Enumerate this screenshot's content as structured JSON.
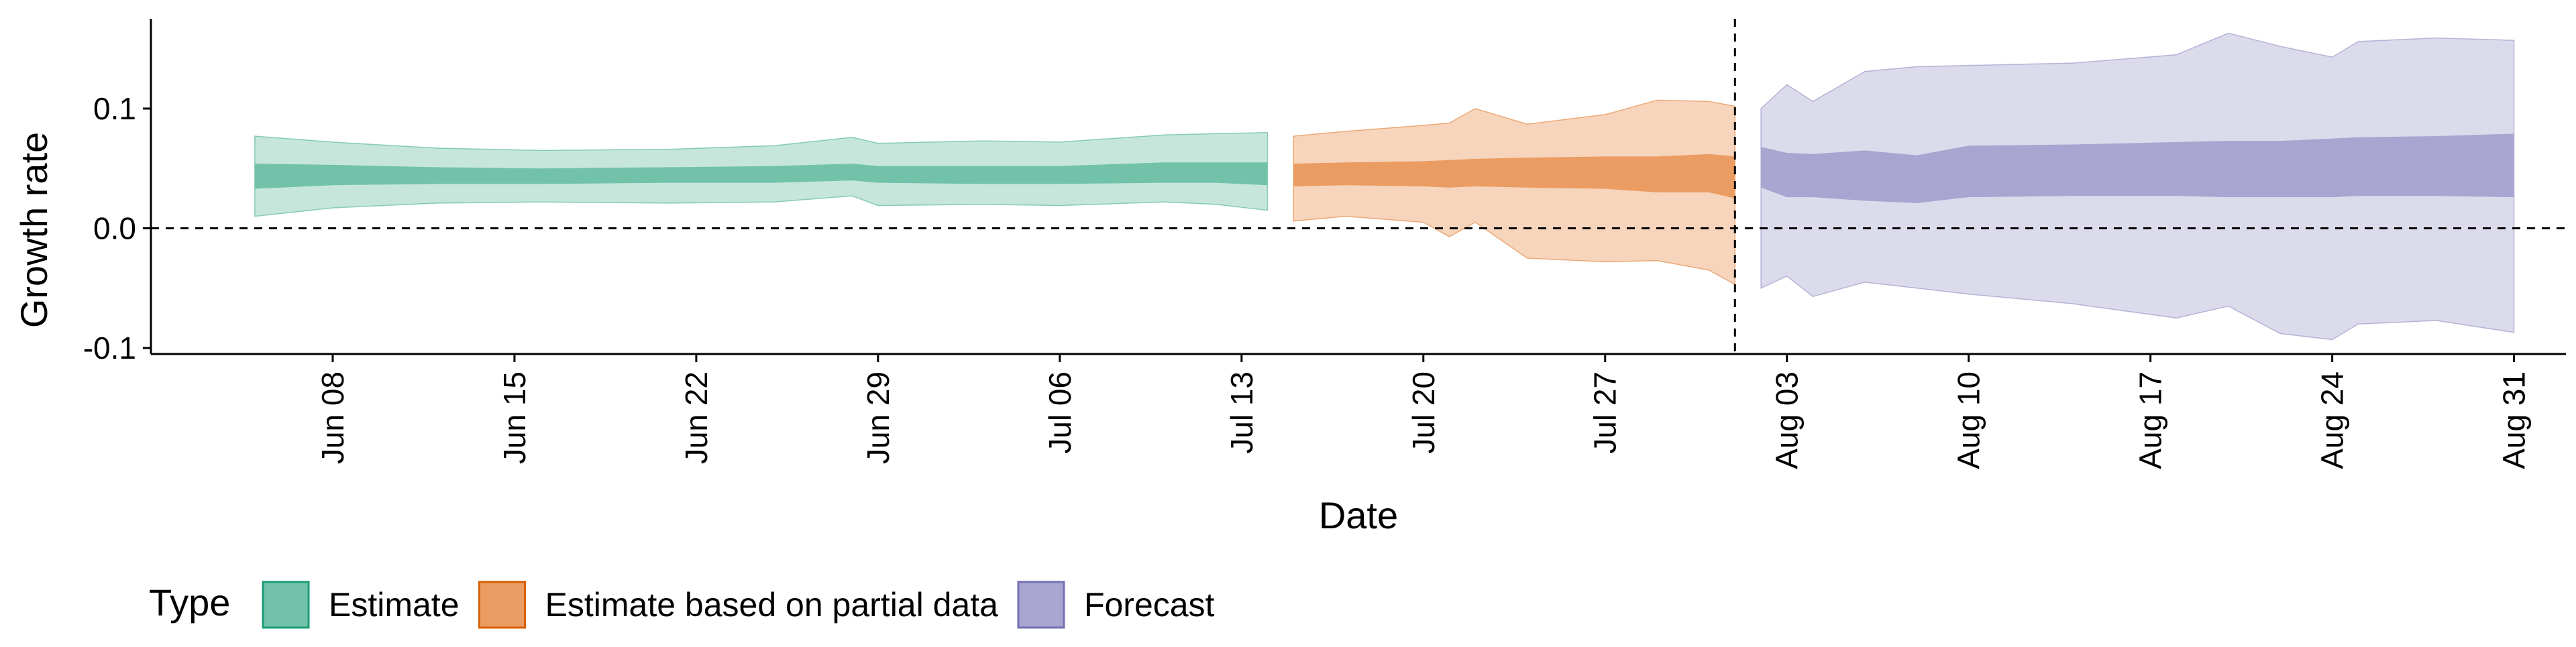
{
  "chart_data": {
    "type": "area",
    "xlabel": "Date",
    "ylabel": "Growth rate",
    "x_axis": {
      "type": "date",
      "range": [
        "2020-06-01",
        "2020-09-02"
      ],
      "ticks": [
        {
          "date": "2020-06-08",
          "label": "Jun 08"
        },
        {
          "date": "2020-06-15",
          "label": "Jun 15"
        },
        {
          "date": "2020-06-22",
          "label": "Jun 22"
        },
        {
          "date": "2020-06-29",
          "label": "Jun 29"
        },
        {
          "date": "2020-07-06",
          "label": "Jul 06"
        },
        {
          "date": "2020-07-13",
          "label": "Jul 13"
        },
        {
          "date": "2020-07-20",
          "label": "Jul 20"
        },
        {
          "date": "2020-07-27",
          "label": "Jul 27"
        },
        {
          "date": "2020-08-03",
          "label": "Aug 03"
        },
        {
          "date": "2020-08-10",
          "label": "Aug 10"
        },
        {
          "date": "2020-08-17",
          "label": "Aug 17"
        },
        {
          "date": "2020-08-24",
          "label": "Aug 24"
        },
        {
          "date": "2020-08-31",
          "label": "Aug 31"
        }
      ]
    },
    "y_axis": {
      "range": [
        -0.105,
        0.175
      ],
      "ticks": [
        {
          "value": 0.1,
          "label": "0.1"
        },
        {
          "value": 0.0,
          "label": "0.0"
        },
        {
          "value": -0.1,
          "label": "-0.1"
        }
      ]
    },
    "reference_lines": {
      "horizontal_y": 0.0,
      "vertical_date": "2020-08-01",
      "style": "dashed"
    },
    "grid": false,
    "legend": {
      "title": "Type",
      "position": "bottom-left",
      "entries": [
        {
          "label": "Estimate",
          "fill": "#72C2A9",
          "border": "#1B9E77"
        },
        {
          "label": "Estimate based on partial data",
          "fill": "#EA9C62",
          "border": "#D95F02"
        },
        {
          "label": "Forecast",
          "fill": "#A8A5D0",
          "border": "#7570B3"
        }
      ]
    },
    "series": [
      {
        "name": "Estimate",
        "color": "#1B9E77",
        "outer_fill": "#C6E6DC",
        "inner_fill": "#72C2A9",
        "points": [
          {
            "date": "2020-06-05",
            "lo90": 0.01,
            "hi90": 0.077,
            "lo50": 0.033,
            "hi50": 0.054
          },
          {
            "date": "2020-06-08",
            "lo90": 0.017,
            "hi90": 0.072,
            "lo50": 0.036,
            "hi50": 0.053
          },
          {
            "date": "2020-06-12",
            "lo90": 0.021,
            "hi90": 0.067,
            "lo50": 0.037,
            "hi50": 0.051
          },
          {
            "date": "2020-06-16",
            "lo90": 0.022,
            "hi90": 0.065,
            "lo50": 0.037,
            "hi50": 0.05
          },
          {
            "date": "2020-06-21",
            "lo90": 0.021,
            "hi90": 0.066,
            "lo50": 0.038,
            "hi50": 0.051
          },
          {
            "date": "2020-06-25",
            "lo90": 0.022,
            "hi90": 0.069,
            "lo50": 0.038,
            "hi50": 0.052
          },
          {
            "date": "2020-06-28",
            "lo90": 0.027,
            "hi90": 0.076,
            "lo50": 0.04,
            "hi50": 0.054
          },
          {
            "date": "2020-06-29",
            "lo90": 0.019,
            "hi90": 0.071,
            "lo50": 0.038,
            "hi50": 0.052
          },
          {
            "date": "2020-07-03",
            "lo90": 0.02,
            "hi90": 0.073,
            "lo50": 0.037,
            "hi50": 0.052
          },
          {
            "date": "2020-07-06",
            "lo90": 0.019,
            "hi90": 0.072,
            "lo50": 0.037,
            "hi50": 0.052
          },
          {
            "date": "2020-07-10",
            "lo90": 0.022,
            "hi90": 0.078,
            "lo50": 0.038,
            "hi50": 0.055
          },
          {
            "date": "2020-07-12",
            "lo90": 0.02,
            "hi90": 0.079,
            "lo50": 0.038,
            "hi50": 0.055
          },
          {
            "date": "2020-07-14",
            "lo90": 0.015,
            "hi90": 0.08,
            "lo50": 0.036,
            "hi50": 0.055
          }
        ]
      },
      {
        "name": "Estimate based on partial data",
        "color": "#D95F02",
        "outer_fill": "#F7D4BC",
        "inner_fill": "#EA9C62",
        "points": [
          {
            "date": "2020-07-15",
            "lo90": 0.006,
            "hi90": 0.077,
            "lo50": 0.035,
            "hi50": 0.054
          },
          {
            "date": "2020-07-17",
            "lo90": 0.01,
            "hi90": 0.081,
            "lo50": 0.036,
            "hi50": 0.055
          },
          {
            "date": "2020-07-20",
            "lo90": 0.005,
            "hi90": 0.086,
            "lo50": 0.035,
            "hi50": 0.056
          },
          {
            "date": "2020-07-21",
            "lo90": -0.007,
            "hi90": 0.088,
            "lo50": 0.034,
            "hi50": 0.057
          },
          {
            "date": "2020-07-22",
            "lo90": 0.005,
            "hi90": 0.1,
            "lo50": 0.035,
            "hi50": 0.058
          },
          {
            "date": "2020-07-24",
            "lo90": -0.025,
            "hi90": 0.087,
            "lo50": 0.034,
            "hi50": 0.059
          },
          {
            "date": "2020-07-27",
            "lo90": -0.028,
            "hi90": 0.095,
            "lo50": 0.033,
            "hi50": 0.06
          },
          {
            "date": "2020-07-29",
            "lo90": -0.027,
            "hi90": 0.107,
            "lo50": 0.03,
            "hi50": 0.06
          },
          {
            "date": "2020-07-31",
            "lo90": -0.035,
            "hi90": 0.106,
            "lo50": 0.03,
            "hi50": 0.062
          },
          {
            "date": "2020-08-01",
            "lo90": -0.047,
            "hi90": 0.102,
            "lo50": 0.025,
            "hi50": 0.06
          }
        ]
      },
      {
        "name": "Forecast",
        "color": "#7570B3",
        "outer_fill": "#DCDBEC",
        "inner_fill": "#A8A5D0",
        "points": [
          {
            "date": "2020-08-02",
            "lo90": -0.05,
            "hi90": 0.1,
            "lo50": 0.034,
            "hi50": 0.068
          },
          {
            "date": "2020-08-03",
            "lo90": -0.04,
            "hi90": 0.12,
            "lo50": 0.026,
            "hi50": 0.063
          },
          {
            "date": "2020-08-04",
            "lo90": -0.057,
            "hi90": 0.106,
            "lo50": 0.026,
            "hi50": 0.062
          },
          {
            "date": "2020-08-06",
            "lo90": -0.045,
            "hi90": 0.131,
            "lo50": 0.023,
            "hi50": 0.065
          },
          {
            "date": "2020-08-08",
            "lo90": -0.05,
            "hi90": 0.135,
            "lo50": 0.021,
            "hi50": 0.061
          },
          {
            "date": "2020-08-10",
            "lo90": -0.055,
            "hi90": 0.136,
            "lo50": 0.026,
            "hi50": 0.069
          },
          {
            "date": "2020-08-14",
            "lo90": -0.063,
            "hi90": 0.138,
            "lo50": 0.027,
            "hi50": 0.07
          },
          {
            "date": "2020-08-18",
            "lo90": -0.075,
            "hi90": 0.145,
            "lo50": 0.027,
            "hi50": 0.072
          },
          {
            "date": "2020-08-20",
            "lo90": -0.065,
            "hi90": 0.163,
            "lo50": 0.026,
            "hi50": 0.073
          },
          {
            "date": "2020-08-22",
            "lo90": -0.088,
            "hi90": 0.152,
            "lo50": 0.026,
            "hi50": 0.073
          },
          {
            "date": "2020-08-24",
            "lo90": -0.093,
            "hi90": 0.143,
            "lo50": 0.026,
            "hi50": 0.075
          },
          {
            "date": "2020-08-25",
            "lo90": -0.08,
            "hi90": 0.156,
            "lo50": 0.027,
            "hi50": 0.076
          },
          {
            "date": "2020-08-28",
            "lo90": -0.077,
            "hi90": 0.159,
            "lo50": 0.027,
            "hi50": 0.077
          },
          {
            "date": "2020-08-31",
            "lo90": -0.087,
            "hi90": 0.157,
            "lo50": 0.026,
            "hi50": 0.079
          }
        ]
      }
    ]
  }
}
